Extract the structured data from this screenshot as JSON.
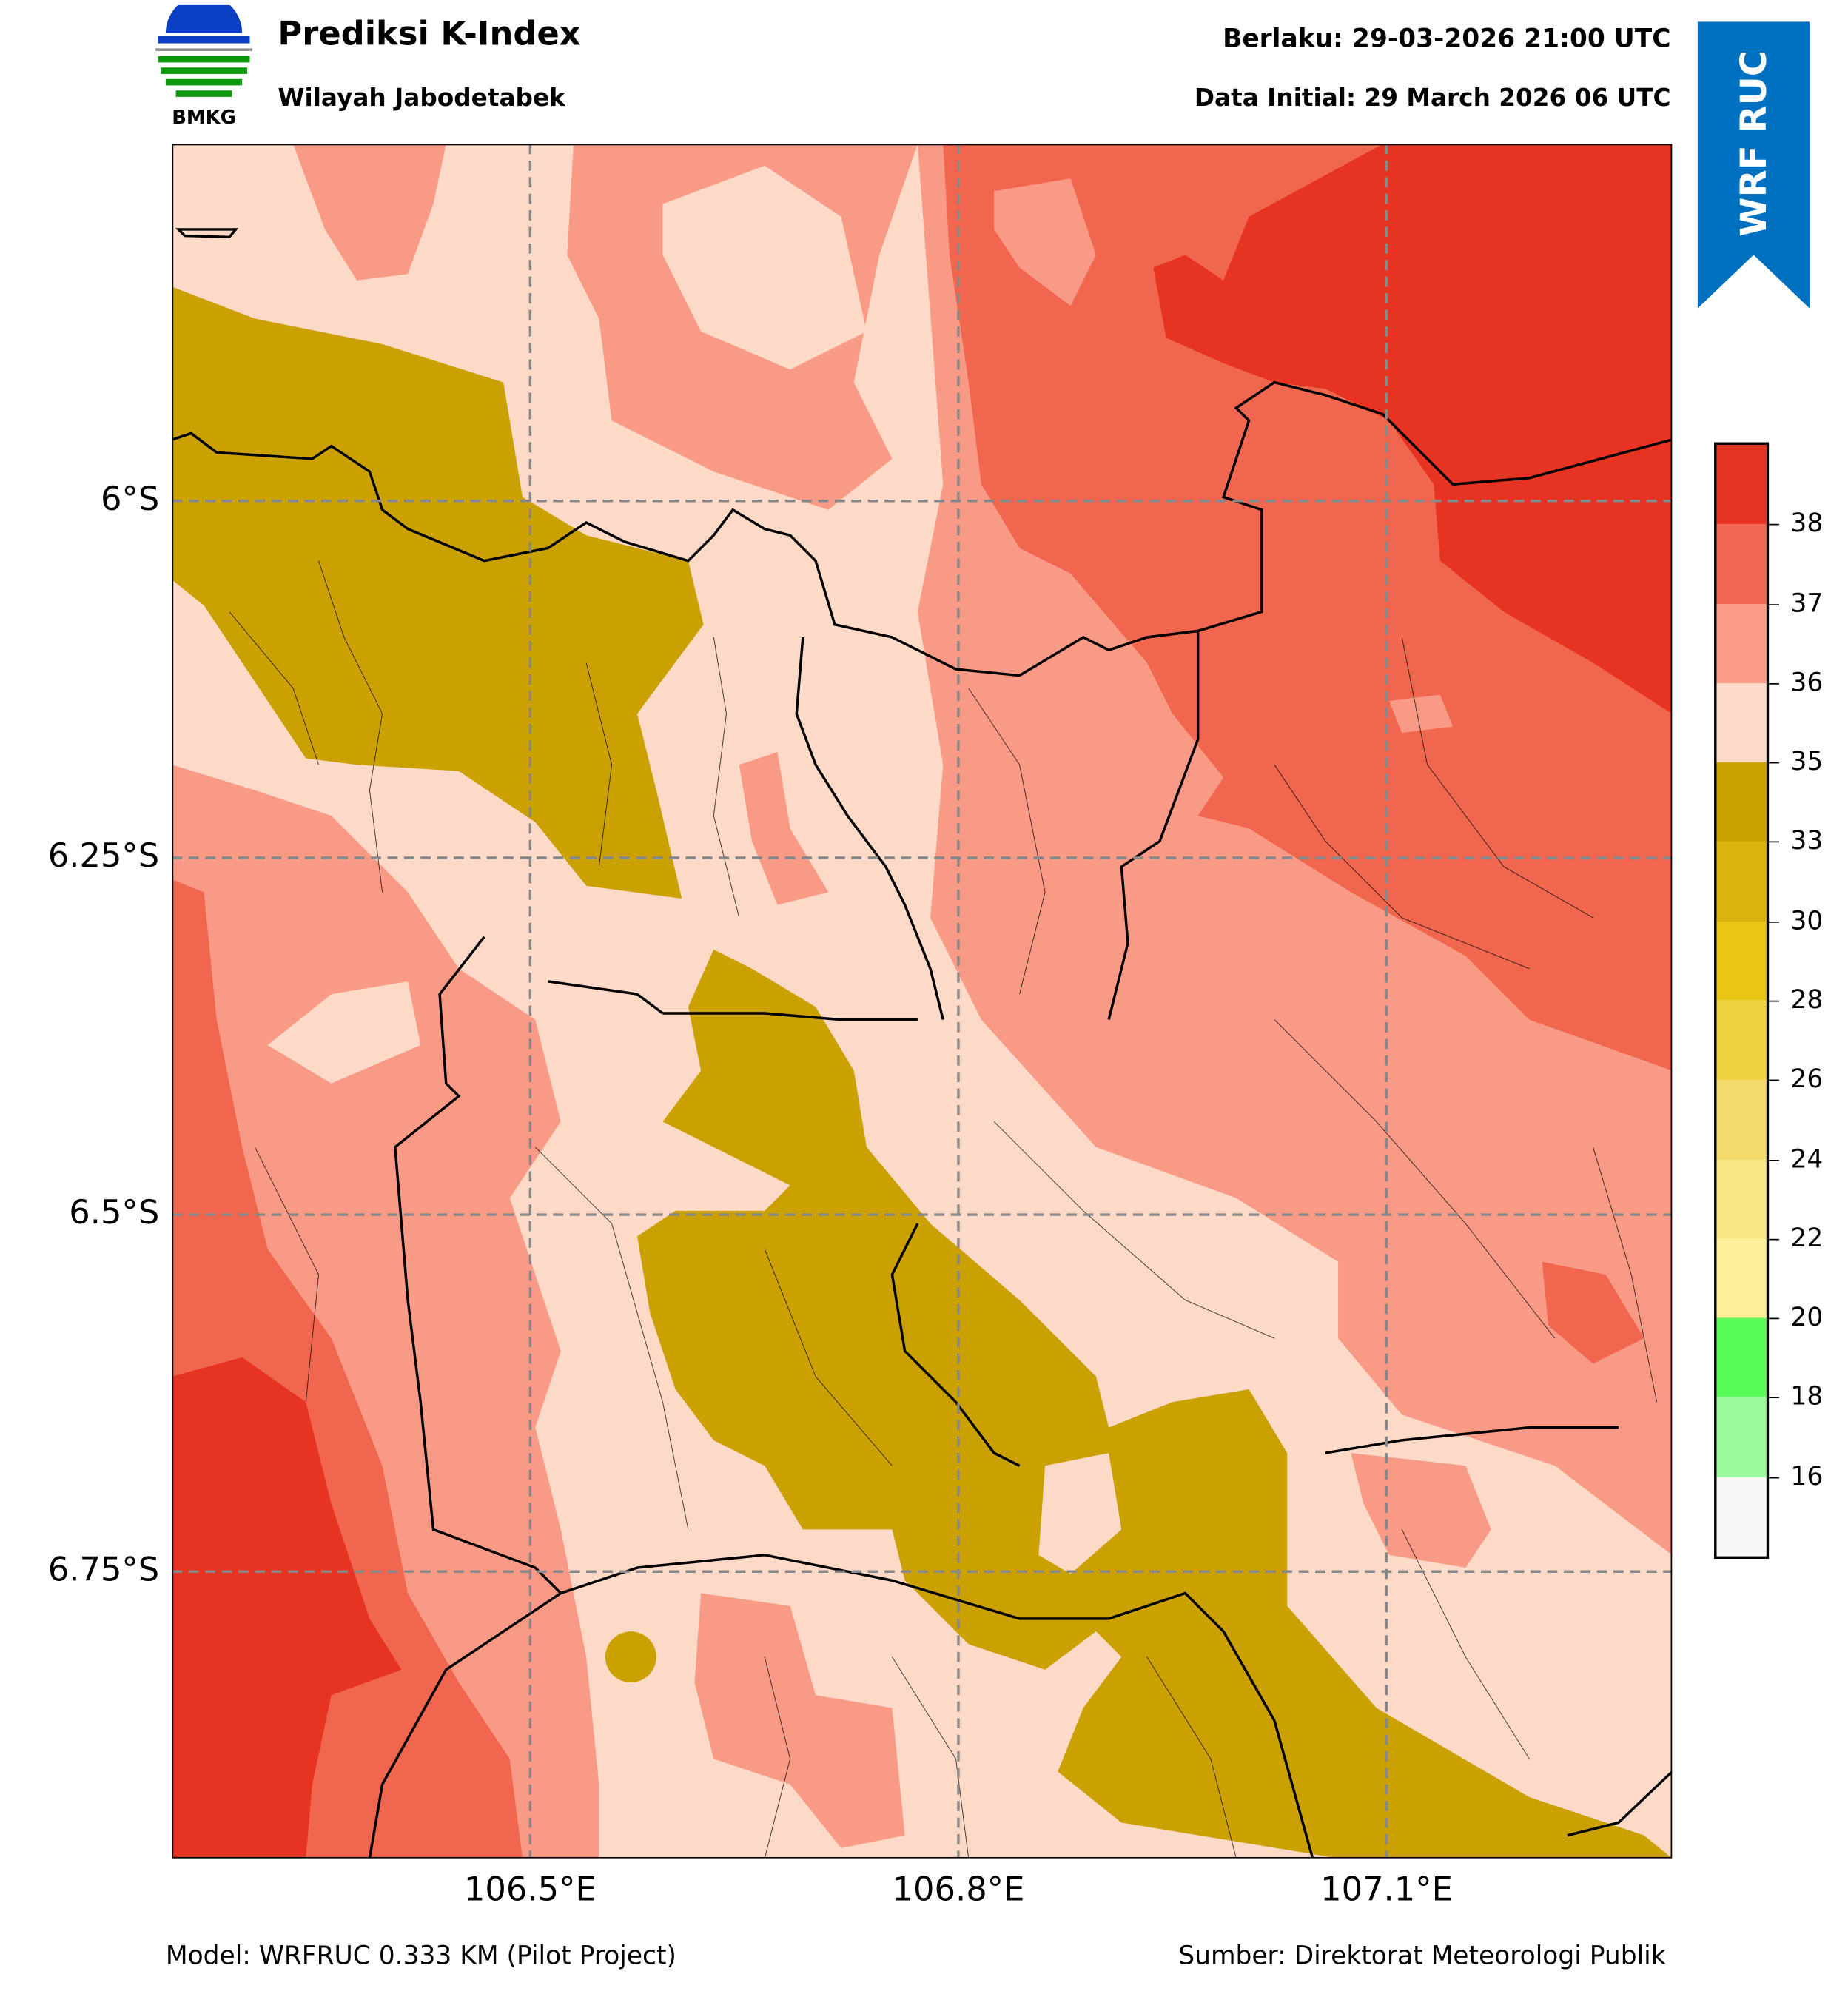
{
  "header": {
    "title": "Prediksi K-Index",
    "subtitle": "Wilayah Jabodetabek",
    "valid_time": "Berlaku: 29-03-2026 21:00 UTC",
    "initial_time": "Data Initial: 29 March 2026 06 UTC",
    "logo_text": "BMKG",
    "banner_text": "WRF RUC",
    "banner_color": "#0070c0"
  },
  "map": {
    "y_ticks": [
      "6°S",
      "6.25°S",
      "6.5°S",
      "6.75°S"
    ],
    "x_ticks": [
      "106.5°E",
      "106.8°E",
      "107.1°E"
    ],
    "fill_colors": {
      "base": "#fdd9c7",
      "salmon": "#f99a86",
      "dark_salmon": "#f0664f",
      "red": "#e63322",
      "olive": "#cba001"
    }
  },
  "colorbar": {
    "colors_top_to_bottom": [
      "#e63322",
      "#f06650",
      "#f99b86",
      "#fddac8",
      "#cba001",
      "#dcb30e",
      "#e9c516",
      "#efd03d",
      "#f4da6a",
      "#f8e586",
      "#fdee99",
      "#5afc5a",
      "#9af99a",
      "#f8f8f8"
    ],
    "labels_top_to_bottom": [
      "38",
      "37",
      "36",
      "35",
      "33",
      "30",
      "28",
      "26",
      "24",
      "22",
      "20",
      "18",
      "16"
    ]
  },
  "footer": {
    "model": "Model: WRFRUC 0.333 KM (Pilot Project)",
    "source": "Sumber: Direktorat Meteorologi Publik"
  }
}
